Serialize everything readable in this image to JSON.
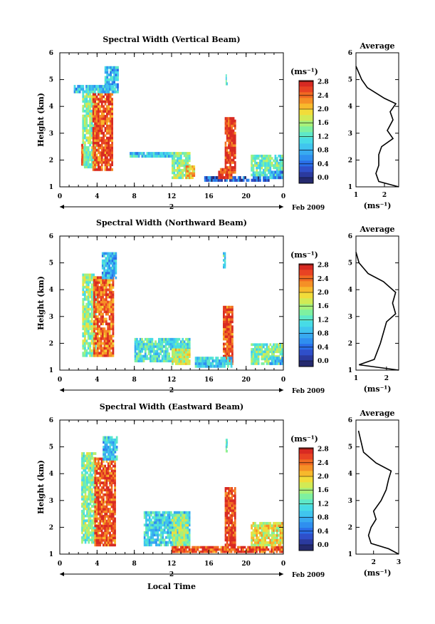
{
  "figure": {
    "xlabel": "Local Time",
    "units_label": "(ms⁻¹)",
    "date_label": "Feb 2009",
    "day_label": "2",
    "avg_title": "Average",
    "avg_xlabel": "(ms⁻¹)"
  },
  "colorbar": {
    "ticks": [
      "0.0",
      "0.4",
      "0.8",
      "1.2",
      "1.6",
      "2.0",
      "2.4",
      "2.8"
    ],
    "colors": [
      "#252a6e",
      "#2b3a9e",
      "#2f4fc9",
      "#2a6ee8",
      "#2f8fef",
      "#38aaf0",
      "#40c5ee",
      "#47dbe6",
      "#5ee8c8",
      "#7ef0a0",
      "#a8f07a",
      "#d2ea55",
      "#f2dc3a",
      "#f7b92c",
      "#f59026",
      "#f06a22",
      "#e84323",
      "#d82a22"
    ]
  },
  "chart_data": [
    {
      "type": "heatmap",
      "title": "Spectral Width (Vertical Beam)",
      "ylabel": "Height (km)",
      "xlim": [
        0,
        24
      ],
      "ylim": [
        1,
        6
      ],
      "xticks": [
        "0",
        "4",
        "8",
        "12",
        "16",
        "20",
        "0"
      ],
      "yticks": [
        "1",
        "2",
        "3",
        "4",
        "5",
        "6"
      ],
      "zlim": [
        0,
        3.0
      ],
      "regions": [
        {
          "x": [
            2.4,
            1.5
          ],
          "y": [
            1.7,
            4.6
          ],
          "v": 1.6
        },
        {
          "x": [
            2.3,
            0.2
          ],
          "y": [
            1.8,
            2.6
          ],
          "v": 2.6
        },
        {
          "x": [
            3.5,
            2.2
          ],
          "y": [
            1.6,
            4.5
          ],
          "v": 2.7
        },
        {
          "x": [
            4.8,
            1.5
          ],
          "y": [
            4.5,
            5.5
          ],
          "v": 1.0
        },
        {
          "x": [
            1.5,
            4.5
          ],
          "y": [
            4.5,
            4.8
          ],
          "v": 1.1
        },
        {
          "x": [
            7.5,
            5.0
          ],
          "y": [
            2.1,
            2.3
          ],
          "v": 1.1
        },
        {
          "x": [
            12.0,
            2.0
          ],
          "y": [
            1.3,
            2.3
          ],
          "v": 1.6
        },
        {
          "x": [
            13.5,
            1.0
          ],
          "y": [
            1.3,
            1.8
          ],
          "v": 2.2
        },
        {
          "x": [
            15.5,
            7.0
          ],
          "y": [
            1.2,
            1.4
          ],
          "v": 0.5
        },
        {
          "x": [
            17.0,
            1.5
          ],
          "y": [
            1.3,
            1.7
          ],
          "v": 2.8
        },
        {
          "x": [
            17.7,
            1.2
          ],
          "y": [
            1.5,
            3.6
          ],
          "v": 2.8
        },
        {
          "x": [
            20.5,
            4.0
          ],
          "y": [
            1.4,
            2.2
          ],
          "v": 1.5
        },
        {
          "x": [
            22.5,
            4.0
          ],
          "y": [
            1.3,
            1.6
          ],
          "v": 0.9
        },
        {
          "x": [
            17.8,
            0.2
          ],
          "y": [
            4.8,
            5.2
          ],
          "v": 1.4
        }
      ],
      "average": {
        "xlim": [
          1,
          2.5
        ],
        "xticks": [
          "1",
          "2"
        ],
        "points": [
          [
            1.0,
            5.5
          ],
          [
            1.2,
            5.0
          ],
          [
            1.4,
            4.7
          ],
          [
            2.0,
            4.3
          ],
          [
            2.4,
            4.1
          ],
          [
            2.2,
            3.8
          ],
          [
            2.3,
            3.5
          ],
          [
            2.1,
            3.1
          ],
          [
            2.3,
            2.8
          ],
          [
            1.9,
            2.5
          ],
          [
            1.8,
            2.2
          ],
          [
            1.8,
            1.8
          ],
          [
            1.7,
            1.5
          ],
          [
            1.8,
            1.2
          ],
          [
            2.5,
            1.0
          ]
        ]
      }
    },
    {
      "type": "heatmap",
      "title": "Spectral Width (Northward Beam)",
      "ylabel": "Height (km)",
      "xlim": [
        0,
        24
      ],
      "ylim": [
        1,
        6
      ],
      "xticks": [
        "0",
        "4",
        "8",
        "12",
        "16",
        "20",
        "0"
      ],
      "yticks": [
        "1",
        "2",
        "3",
        "4",
        "5",
        "6"
      ],
      "zlim": [
        0,
        3.0
      ],
      "regions": [
        {
          "x": [
            2.4,
            1.5
          ],
          "y": [
            1.5,
            4.6
          ],
          "v": 1.7
        },
        {
          "x": [
            3.6,
            2.2
          ],
          "y": [
            1.5,
            4.5
          ],
          "v": 2.6
        },
        {
          "x": [
            4.5,
            1.6
          ],
          "y": [
            4.4,
            5.4
          ],
          "v": 1.0
        },
        {
          "x": [
            8.0,
            6.0
          ],
          "y": [
            1.3,
            2.2
          ],
          "v": 1.3
        },
        {
          "x": [
            12.0,
            2.0
          ],
          "y": [
            1.2,
            1.8
          ],
          "v": 1.9
        },
        {
          "x": [
            17.5,
            1.1
          ],
          "y": [
            1.2,
            3.4
          ],
          "v": 2.7
        },
        {
          "x": [
            17.5,
            0.3
          ],
          "y": [
            4.8,
            5.4
          ],
          "v": 1.3
        },
        {
          "x": [
            20.5,
            4.0
          ],
          "y": [
            1.2,
            2.0
          ],
          "v": 1.6
        },
        {
          "x": [
            22.5,
            3.5
          ],
          "y": [
            1.2,
            1.5
          ],
          "v": 0.9
        },
        {
          "x": [
            14.5,
            4.0
          ],
          "y": [
            1.1,
            1.5
          ],
          "v": 1.2
        }
      ],
      "average": {
        "xlim": [
          1,
          2.4
        ],
        "xticks": [
          "1",
          "2"
        ],
        "points": [
          [
            1.0,
            5.4
          ],
          [
            1.1,
            5.0
          ],
          [
            1.4,
            4.6
          ],
          [
            1.9,
            4.3
          ],
          [
            2.3,
            3.9
          ],
          [
            2.2,
            3.5
          ],
          [
            2.3,
            3.1
          ],
          [
            2.0,
            2.8
          ],
          [
            1.9,
            2.4
          ],
          [
            1.8,
            2.0
          ],
          [
            1.7,
            1.7
          ],
          [
            1.6,
            1.4
          ],
          [
            1.1,
            1.2
          ],
          [
            2.4,
            1.0
          ]
        ]
      }
    },
    {
      "type": "heatmap",
      "title": "Spectral Width (Eastward Beam)",
      "ylabel": "Height (km)",
      "xlim": [
        0,
        24
      ],
      "ylim": [
        1,
        6
      ],
      "xticks": [
        "0",
        "4",
        "8",
        "12",
        "16",
        "20",
        "0"
      ],
      "yticks": [
        "1",
        "2",
        "3",
        "4",
        "5",
        "6"
      ],
      "zlim": [
        0,
        3.0
      ],
      "regions": [
        {
          "x": [
            2.3,
            1.6
          ],
          "y": [
            1.4,
            4.8
          ],
          "v": 1.6
        },
        {
          "x": [
            3.7,
            2.3
          ],
          "y": [
            1.3,
            4.6
          ],
          "v": 2.7
        },
        {
          "x": [
            4.6,
            1.6
          ],
          "y": [
            4.5,
            5.4
          ],
          "v": 1.1
        },
        {
          "x": [
            9.0,
            5.0
          ],
          "y": [
            1.3,
            2.6
          ],
          "v": 1.2
        },
        {
          "x": [
            12.0,
            1.8
          ],
          "y": [
            1.3,
            2.5
          ],
          "v": 1.7
        },
        {
          "x": [
            12.0,
            24.0
          ],
          "y": [
            1.05,
            1.3
          ],
          "v": 2.7
        },
        {
          "x": [
            17.7,
            1.2
          ],
          "y": [
            1.3,
            3.5
          ],
          "v": 2.8
        },
        {
          "x": [
            20.5,
            4.0
          ],
          "y": [
            1.3,
            2.2
          ],
          "v": 2.0
        },
        {
          "x": [
            17.8,
            0.2
          ],
          "y": [
            4.8,
            5.3
          ],
          "v": 1.3
        }
      ],
      "average": {
        "xlim": [
          1.3,
          3
        ],
        "xticks": [
          "2",
          "3"
        ],
        "points": [
          [
            1.4,
            5.6
          ],
          [
            1.5,
            5.2
          ],
          [
            1.6,
            4.8
          ],
          [
            2.1,
            4.4
          ],
          [
            2.7,
            4.1
          ],
          [
            2.6,
            3.8
          ],
          [
            2.5,
            3.4
          ],
          [
            2.3,
            3.0
          ],
          [
            2.0,
            2.6
          ],
          [
            2.1,
            2.3
          ],
          [
            1.9,
            2.0
          ],
          [
            1.8,
            1.7
          ],
          [
            1.9,
            1.4
          ],
          [
            2.6,
            1.2
          ],
          [
            3.0,
            1.0
          ]
        ]
      }
    }
  ]
}
